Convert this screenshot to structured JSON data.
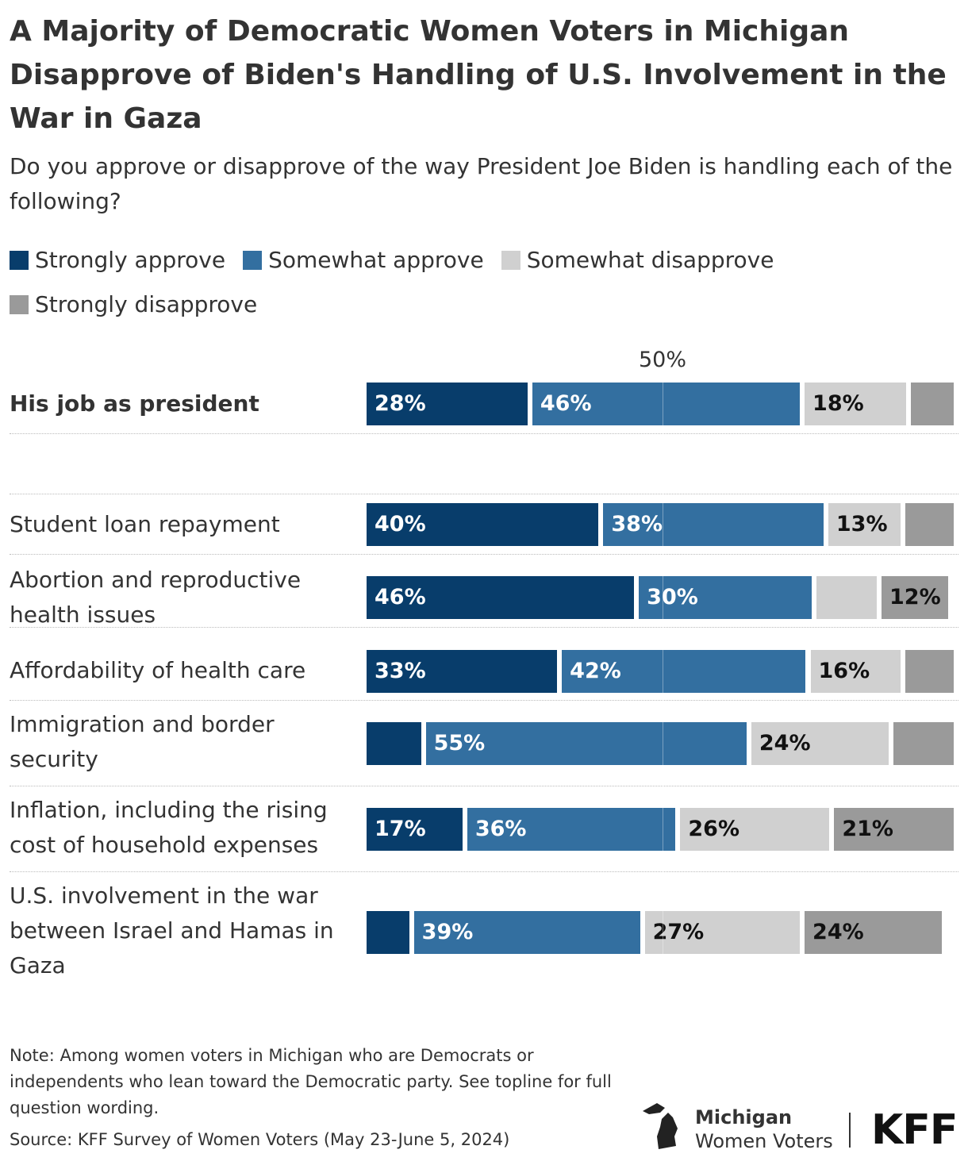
{
  "chart_data": {
    "type": "bar",
    "orientation": "horizontal",
    "stacked": true,
    "title": "A Majority of Democratic Women Voters in Michigan Disapprove of Biden's Handling of U.S. Involvement in the War in Gaza",
    "subtitle": "Do you approve or disapprove of the way President Joe Biden is handling each of the following?",
    "categories": [
      "His job as president",
      "Student loan repayment",
      "Abortion and reproductive health issues",
      "Affordability of health care",
      "Immigration and border security",
      "Inflation, including the rising cost of household expenses",
      "U.S. involvement in the war between Israel and Hamas in Gaza"
    ],
    "series": [
      {
        "name": "Strongly approve",
        "color": "#083d6b",
        "values": [
          28,
          40,
          46,
          33,
          10,
          17,
          8
        ],
        "value_labels": [
          "28%",
          "40%",
          "46%",
          "33%",
          null,
          "17%",
          null
        ]
      },
      {
        "name": "Somewhat approve",
        "color": "#336fa0",
        "values": [
          46,
          38,
          30,
          42,
          55,
          36,
          39
        ],
        "value_labels": [
          "46%",
          "38%",
          "30%",
          "42%",
          "55%",
          "36%",
          "39%"
        ]
      },
      {
        "name": "Somewhat disapprove",
        "color": "#d0d0d0",
        "values": [
          18,
          13,
          11,
          16,
          24,
          26,
          27
        ],
        "value_labels": [
          "18%",
          "13%",
          null,
          "16%",
          "24%",
          "26%",
          "27%"
        ]
      },
      {
        "name": "Strongly disapprove",
        "color": "#9a9a9a",
        "values": [
          8,
          9,
          12,
          9,
          11,
          21,
          24
        ],
        "value_labels": [
          null,
          null,
          "12%",
          null,
          null,
          "21%",
          "24%"
        ]
      }
    ],
    "xlim": [
      0,
      100
    ],
    "xticks": [
      {
        "value": 50,
        "label": "50%"
      }
    ],
    "legend": "top"
  },
  "footer": {
    "note": "Note: Among women voters in Michigan who are Democrats or independents who lean toward the Democratic party. See topline for full question wording.",
    "source": "Source: KFF Survey of Women Voters (May 23-June 5, 2024)",
    "logo_line1": "Michigan",
    "logo_line2": "Women Voters",
    "brand": "KFF"
  }
}
